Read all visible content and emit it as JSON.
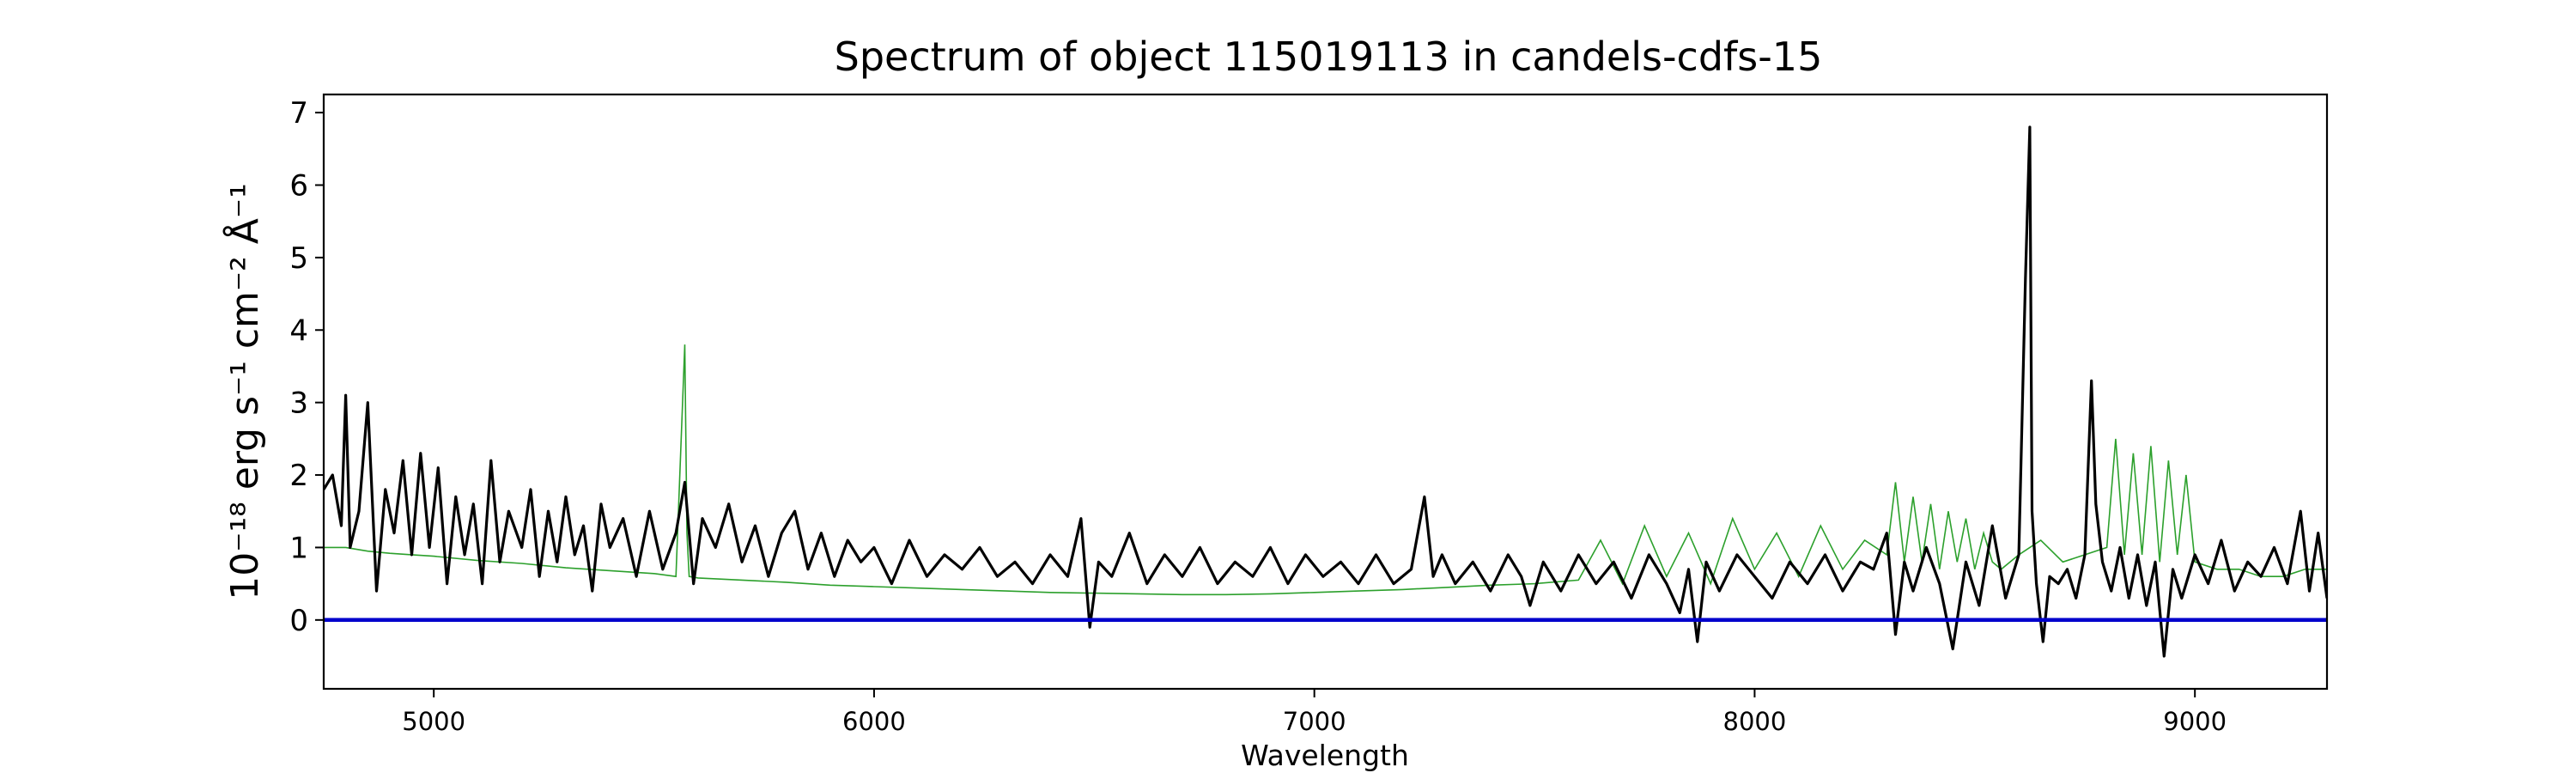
{
  "chart_data": {
    "type": "line",
    "title": "Spectrum of object 115019113 in candels-cdfs-15",
    "xlabel": "Wavelength",
    "ylabel": "10⁻¹⁸ erg s⁻¹ cm⁻² Å⁻¹",
    "xlim": [
      4750,
      9300
    ],
    "ylim": [
      -0.95,
      7.25
    ],
    "x_ticks": [
      5000,
      6000,
      7000,
      8000,
      9000
    ],
    "x_tick_labels": [
      "5000",
      "6000",
      "7000",
      "8000",
      "9000"
    ],
    "y_ticks": [
      0,
      1,
      2,
      3,
      4,
      5,
      6,
      7
    ],
    "y_tick_labels": [
      "0",
      "1",
      "2",
      "3",
      "4",
      "5",
      "6",
      "7"
    ],
    "grid": false,
    "colors": {
      "spectrum": "#000000",
      "model": "#2ca02c",
      "zero_line": "#0000cc",
      "axes": "#000000"
    },
    "series": [
      {
        "key": "spectrum",
        "x": [
          4750,
          4770,
          4790,
          4800,
          4810,
          4830,
          4850,
          4870,
          4890,
          4910,
          4930,
          4950,
          4970,
          4990,
          5010,
          5030,
          5050,
          5070,
          5090,
          5110,
          5130,
          5150,
          5170,
          5200,
          5220,
          5240,
          5260,
          5280,
          5300,
          5320,
          5340,
          5360,
          5380,
          5400,
          5430,
          5460,
          5490,
          5520,
          5550,
          5570,
          5590,
          5610,
          5640,
          5670,
          5700,
          5730,
          5760,
          5790,
          5820,
          5850,
          5880,
          5910,
          5940,
          5970,
          6000,
          6040,
          6080,
          6120,
          6160,
          6200,
          6240,
          6280,
          6320,
          6360,
          6400,
          6440,
          6470,
          6490,
          6510,
          6540,
          6580,
          6620,
          6660,
          6700,
          6740,
          6780,
          6820,
          6860,
          6900,
          6940,
          6980,
          7020,
          7060,
          7100,
          7140,
          7180,
          7220,
          7250,
          7270,
          7290,
          7320,
          7360,
          7400,
          7440,
          7470,
          7490,
          7520,
          7560,
          7600,
          7640,
          7680,
          7720,
          7760,
          7800,
          7830,
          7850,
          7870,
          7890,
          7920,
          7960,
          8000,
          8040,
          8080,
          8120,
          8160,
          8200,
          8240,
          8270,
          8300,
          8320,
          8340,
          8360,
          8390,
          8420,
          8450,
          8480,
          8510,
          8540,
          8570,
          8600,
          8615,
          8625,
          8630,
          8640,
          8655,
          8670,
          8690,
          8710,
          8730,
          8750,
          8765,
          8775,
          8790,
          8810,
          8830,
          8850,
          8870,
          8890,
          8910,
          8930,
          8950,
          8970,
          9000,
          9030,
          9060,
          9090,
          9120,
          9150,
          9180,
          9210,
          9240,
          9260,
          9280,
          9300
        ],
        "y": [
          1.8,
          2.0,
          1.3,
          3.1,
          1.0,
          1.5,
          3.0,
          0.4,
          1.8,
          1.2,
          2.2,
          0.9,
          2.3,
          1.0,
          2.1,
          0.5,
          1.7,
          0.9,
          1.6,
          0.5,
          2.2,
          0.8,
          1.5,
          1.0,
          1.8,
          0.6,
          1.5,
          0.8,
          1.7,
          0.9,
          1.3,
          0.4,
          1.6,
          1.0,
          1.4,
          0.6,
          1.5,
          0.7,
          1.2,
          1.9,
          0.5,
          1.4,
          1.0,
          1.6,
          0.8,
          1.3,
          0.6,
          1.2,
          1.5,
          0.7,
          1.2,
          0.6,
          1.1,
          0.8,
          1.0,
          0.5,
          1.1,
          0.6,
          0.9,
          0.7,
          1.0,
          0.6,
          0.8,
          0.5,
          0.9,
          0.6,
          1.4,
          -0.1,
          0.8,
          0.6,
          1.2,
          0.5,
          0.9,
          0.6,
          1.0,
          0.5,
          0.8,
          0.6,
          1.0,
          0.5,
          0.9,
          0.6,
          0.8,
          0.5,
          0.9,
          0.5,
          0.7,
          1.7,
          0.6,
          0.9,
          0.5,
          0.8,
          0.4,
          0.9,
          0.6,
          0.2,
          0.8,
          0.4,
          0.9,
          0.5,
          0.8,
          0.3,
          0.9,
          0.5,
          0.1,
          0.7,
          -0.3,
          0.8,
          0.4,
          0.9,
          0.6,
          0.3,
          0.8,
          0.5,
          0.9,
          0.4,
          0.8,
          0.7,
          1.2,
          -0.2,
          0.8,
          0.4,
          1.0,
          0.5,
          -0.4,
          0.8,
          0.2,
          1.3,
          0.3,
          0.9,
          4.7,
          6.8,
          1.5,
          0.5,
          -0.3,
          0.6,
          0.5,
          0.7,
          0.3,
          0.9,
          3.3,
          1.6,
          0.8,
          0.4,
          1.0,
          0.3,
          0.9,
          0.2,
          0.8,
          -0.5,
          0.7,
          0.3,
          0.9,
          0.5,
          1.1,
          0.4,
          0.8,
          0.6,
          1.0,
          0.5,
          1.5,
          0.4,
          1.2,
          0.3
        ]
      },
      {
        "key": "model",
        "x": [
          4750,
          4800,
          4850,
          4900,
          4950,
          5000,
          5100,
          5200,
          5300,
          5400,
          5500,
          5550,
          5570,
          5575,
          5580,
          5600,
          5700,
          5800,
          5900,
          6000,
          6100,
          6200,
          6300,
          6400,
          6500,
          6600,
          6700,
          6800,
          6900,
          7000,
          7100,
          7200,
          7300,
          7400,
          7500,
          7600,
          7650,
          7700,
          7750,
          7800,
          7850,
          7900,
          7950,
          8000,
          8050,
          8100,
          8150,
          8200,
          8250,
          8300,
          8320,
          8340,
          8360,
          8380,
          8400,
          8420,
          8440,
          8460,
          8480,
          8500,
          8520,
          8540,
          8560,
          8600,
          8650,
          8700,
          8750,
          8800,
          8820,
          8840,
          8860,
          8880,
          8900,
          8920,
          8940,
          8960,
          8980,
          9000,
          9050,
          9100,
          9150,
          9200,
          9250,
          9300
        ],
        "y": [
          1.0,
          1.0,
          0.95,
          0.92,
          0.9,
          0.88,
          0.82,
          0.78,
          0.72,
          0.68,
          0.64,
          0.6,
          3.8,
          1.2,
          0.6,
          0.58,
          0.55,
          0.52,
          0.48,
          0.46,
          0.44,
          0.42,
          0.4,
          0.38,
          0.37,
          0.36,
          0.35,
          0.35,
          0.36,
          0.38,
          0.4,
          0.42,
          0.45,
          0.48,
          0.5,
          0.55,
          1.1,
          0.5,
          1.3,
          0.6,
          1.2,
          0.5,
          1.4,
          0.7,
          1.2,
          0.6,
          1.3,
          0.7,
          1.1,
          0.9,
          1.9,
          0.8,
          1.7,
          0.8,
          1.6,
          0.7,
          1.5,
          0.8,
          1.4,
          0.7,
          1.2,
          0.8,
          0.7,
          0.9,
          1.1,
          0.8,
          0.9,
          1.0,
          2.5,
          0.9,
          2.3,
          0.9,
          2.4,
          0.8,
          2.2,
          0.9,
          2.0,
          0.8,
          0.7,
          0.7,
          0.6,
          0.6,
          0.7,
          0.7
        ]
      },
      {
        "key": "zero",
        "x": [
          4750,
          9300
        ],
        "y": [
          0,
          0
        ]
      }
    ]
  }
}
